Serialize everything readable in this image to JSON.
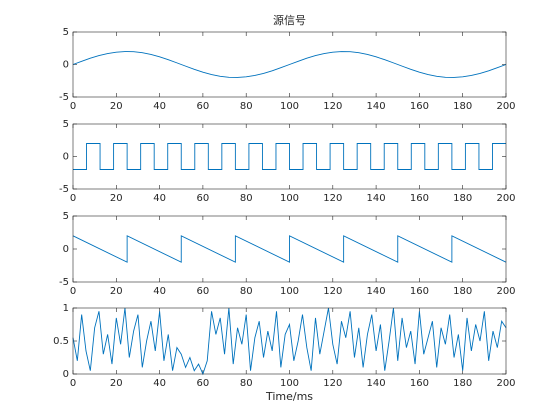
{
  "chart_data": [
    {
      "type": "line",
      "title": "源信号",
      "color": "#0072bd",
      "x": [
        0,
        4,
        8,
        12,
        16,
        20,
        24,
        28,
        32,
        36,
        40,
        44,
        48,
        52,
        56,
        60,
        64,
        68,
        72,
        76,
        80,
        84,
        88,
        92,
        96,
        100,
        104,
        108,
        112,
        116,
        120,
        124,
        128,
        132,
        136,
        140,
        144,
        148,
        152,
        156,
        160,
        164,
        168,
        172,
        176,
        180,
        184,
        188,
        192,
        196,
        200
      ],
      "values": [
        0,
        0.497,
        0.964,
        1.369,
        1.689,
        1.902,
        1.996,
        1.965,
        1.81,
        1.541,
        1.176,
        0.736,
        0.251,
        -0.251,
        -0.736,
        -1.176,
        -1.541,
        -1.81,
        -1.965,
        -1.996,
        -1.902,
        -1.689,
        -1.369,
        -0.964,
        -0.497,
        0,
        0.497,
        0.964,
        1.369,
        1.689,
        1.902,
        1.996,
        1.965,
        1.81,
        1.541,
        1.176,
        0.736,
        0.251,
        -0.251,
        -0.736,
        -1.176,
        -1.541,
        -1.81,
        -1.965,
        -1.996,
        -1.902,
        -1.689,
        -1.369,
        -0.964,
        -0.497,
        0
      ],
      "xlim": [
        0,
        200
      ],
      "ylim": [
        -5,
        5
      ],
      "xticks": [
        0,
        20,
        40,
        60,
        80,
        100,
        120,
        140,
        160,
        180,
        200
      ],
      "yticks": [
        -5,
        0,
        5
      ]
    },
    {
      "type": "line",
      "color": "#0072bd",
      "x": [
        0,
        6.25,
        6.25,
        12.5,
        12.5,
        18.75,
        18.75,
        25,
        25,
        31.25,
        31.25,
        37.5,
        37.5,
        43.75,
        43.75,
        50,
        50,
        56.25,
        56.25,
        62.5,
        62.5,
        68.75,
        68.75,
        75,
        75,
        81.25,
        81.25,
        87.5,
        87.5,
        93.75,
        93.75,
        100,
        100,
        106.25,
        106.25,
        112.5,
        112.5,
        118.75,
        118.75,
        125,
        125,
        131.25,
        131.25,
        137.5,
        137.5,
        143.75,
        143.75,
        150,
        150,
        156.25,
        156.25,
        162.5,
        162.5,
        168.75,
        168.75,
        175,
        175,
        181.25,
        181.25,
        187.5,
        187.5,
        193.75,
        193.75,
        200
      ],
      "values": [
        -2,
        -2,
        2,
        2,
        -2,
        -2,
        2,
        2,
        -2,
        -2,
        2,
        2,
        -2,
        -2,
        2,
        2,
        -2,
        -2,
        2,
        2,
        -2,
        -2,
        2,
        2,
        -2,
        -2,
        2,
        2,
        -2,
        -2,
        2,
        2,
        -2,
        -2,
        2,
        2,
        -2,
        -2,
        2,
        2,
        -2,
        -2,
        2,
        2,
        -2,
        -2,
        2,
        2,
        -2,
        -2,
        2,
        2,
        -2,
        -2,
        2,
        2,
        -2,
        -2,
        2,
        2,
        -2,
        -2,
        2,
        2
      ],
      "xlim": [
        0,
        200
      ],
      "ylim": [
        -5,
        5
      ],
      "xticks": [
        0,
        20,
        40,
        60,
        80,
        100,
        120,
        140,
        160,
        180,
        200
      ],
      "yticks": [
        -5,
        0,
        5
      ]
    },
    {
      "type": "line",
      "color": "#0072bd",
      "x": [
        0,
        25,
        25,
        50,
        50,
        75,
        75,
        100,
        100,
        125,
        125,
        150,
        150,
        175,
        175,
        200
      ],
      "values": [
        2,
        -2,
        2,
        -2,
        2,
        -2,
        2,
        -2,
        2,
        -2,
        2,
        -2,
        2,
        -2,
        2,
        -2
      ],
      "xlim": [
        0,
        200
      ],
      "ylim": [
        -5,
        5
      ],
      "xticks": [
        0,
        20,
        40,
        60,
        80,
        100,
        120,
        140,
        160,
        180,
        200
      ],
      "yticks": [
        -5,
        0,
        5
      ]
    },
    {
      "type": "line",
      "color": "#0072bd",
      "xlabel": "Time/ms",
      "x": [
        0,
        2,
        4,
        6,
        8,
        10,
        12,
        14,
        16,
        18,
        20,
        22,
        24,
        26,
        28,
        30,
        32,
        34,
        36,
        38,
        40,
        42,
        44,
        46,
        48,
        50,
        52,
        54,
        56,
        58,
        60,
        62,
        64,
        66,
        68,
        70,
        72,
        74,
        76,
        78,
        80,
        82,
        84,
        86,
        88,
        90,
        92,
        94,
        96,
        98,
        100,
        102,
        104,
        106,
        108,
        110,
        112,
        114,
        116,
        118,
        120,
        122,
        124,
        126,
        128,
        130,
        132,
        134,
        136,
        138,
        140,
        142,
        144,
        146,
        148,
        150,
        152,
        154,
        156,
        158,
        160,
        162,
        164,
        166,
        168,
        170,
        172,
        174,
        176,
        178,
        180,
        182,
        184,
        186,
        188,
        190,
        192,
        194,
        196,
        198,
        200
      ],
      "values": [
        0.55,
        0.2,
        0.9,
        0.35,
        0.05,
        0.7,
        0.95,
        0.3,
        0.6,
        0.15,
        0.85,
        0.45,
        1.0,
        0.25,
        0.65,
        0.9,
        0.1,
        0.5,
        0.8,
        0.35,
        0.95,
        0.2,
        0.6,
        0.05,
        0.4,
        0.3,
        0.1,
        0.25,
        0.05,
        0.15,
        0.0,
        0.2,
        0.95,
        0.6,
        0.85,
        0.3,
        1.0,
        0.15,
        0.7,
        0.45,
        0.9,
        0.05,
        0.55,
        0.8,
        0.25,
        0.65,
        0.35,
        0.95,
        0.1,
        0.6,
        0.75,
        0.2,
        0.5,
        0.9,
        0.4,
        0.05,
        0.85,
        0.3,
        0.65,
        1.0,
        0.45,
        0.15,
        0.8,
        0.55,
        0.95,
        0.25,
        0.7,
        0.1,
        0.6,
        0.9,
        0.35,
        0.75,
        0.05,
        0.5,
        1.0,
        0.2,
        0.85,
        0.4,
        0.65,
        0.15,
        0.95,
        0.3,
        0.55,
        0.8,
        0.1,
        0.7,
        0.45,
        0.9,
        0.25,
        0.6,
        0.05,
        0.85,
        0.35,
        0.75,
        0.5,
        0.95,
        0.2,
        0.65,
        0.4,
        0.8,
        0.7
      ],
      "xlim": [
        0,
        200
      ],
      "ylim": [
        0,
        1
      ],
      "xticks": [
        0,
        20,
        40,
        60,
        80,
        100,
        120,
        140,
        160,
        180,
        200
      ],
      "yticks": [
        0,
        0.5,
        1
      ]
    }
  ]
}
